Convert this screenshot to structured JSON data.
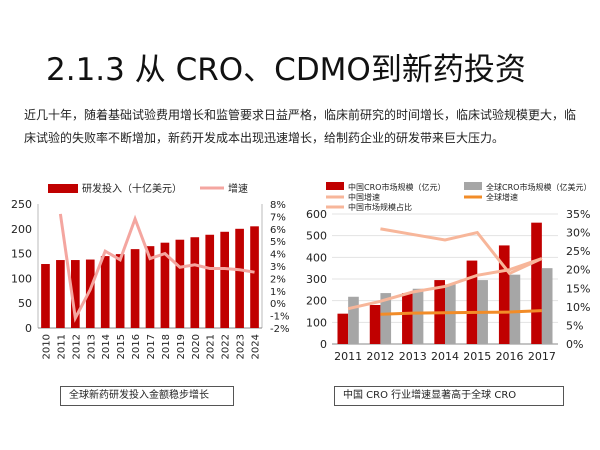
{
  "slide": {
    "title": "2.1.3 从 CRO、CDMO到新药投资",
    "intro": "近几十年，随着基础试验费用增长和监管要求日益严格，临床前研究的时间增长，临床试验规模更大，临床试验的失败率不断增加，新药开发成本出现迅速增长，给制药企业的研发带来巨大压力。"
  },
  "captions": {
    "left": "全球新药研发投入金额稳步增长",
    "right": "中国 CRO 行业增速显著高于全球 CRO"
  },
  "colors": {
    "dark_red": "#c00000",
    "pink": "#f4a6a0",
    "gray": "#a6a6a6",
    "orange": "#f28c28",
    "salmon": "#f7b69a"
  },
  "chart_data": [
    {
      "type": "bar",
      "categories": [
        "2010",
        "2011",
        "2012",
        "2013",
        "2014",
        "2015",
        "2016",
        "2017",
        "2018",
        "2019",
        "2020",
        "2021",
        "2022",
        "2023",
        "2024"
      ],
      "series": [
        {
          "name": "研发投入（十亿美元）",
          "type": "bar",
          "axis": "left",
          "color": "#c00000",
          "values": [
            129,
            137,
            137,
            138,
            145,
            149,
            159,
            165,
            172,
            178,
            183,
            188,
            194,
            200,
            205
          ]
        },
        {
          "name": "增速",
          "type": "line",
          "axis": "right",
          "color": "#f4a6a0",
          "values": [
            null,
            7.2,
            -1.2,
            1.1,
            4.2,
            3.5,
            6.8,
            3.6,
            4.0,
            2.9,
            3.1,
            2.8,
            2.8,
            2.7,
            2.5
          ]
        }
      ],
      "y_left": {
        "min": 0,
        "max": 250,
        "ticks": [
          0,
          50,
          100,
          150,
          200,
          250
        ]
      },
      "y_right": {
        "min": -2,
        "max": 8,
        "ticks": [
          "-2%",
          "-1%",
          "0%",
          "1%",
          "2%",
          "3%",
          "4%",
          "5%",
          "6%",
          "7%",
          "8%"
        ]
      },
      "legend": [
        "研发投入（十亿美元）",
        "增速"
      ],
      "legend_position": "top"
    },
    {
      "type": "bar",
      "categories": [
        "2011",
        "2012",
        "2013",
        "2014",
        "2015",
        "2016",
        "2017"
      ],
      "series": [
        {
          "name": "中国CRO市场规模（亿元）",
          "type": "bar",
          "axis": "left",
          "color": "#c00000",
          "values": [
            140,
            180,
            235,
            295,
            385,
            455,
            560
          ]
        },
        {
          "name": "全球CRO市场规模（亿美元）",
          "type": "bar",
          "axis": "left",
          "color": "#a6a6a6",
          "values": [
            218,
            235,
            255,
            275,
            295,
            320,
            350
          ]
        },
        {
          "name": "中国增速",
          "type": "line",
          "axis": "right",
          "color": "#f7b69a",
          "values": [
            null,
            31,
            29.5,
            28,
            30,
            19,
            23
          ]
        },
        {
          "name": "全球增速",
          "type": "line",
          "axis": "right",
          "color": "#f28c28",
          "values": [
            null,
            8,
            8.3,
            8.4,
            8.5,
            8.6,
            9
          ]
        },
        {
          "name": "中国市场规模占比",
          "type": "line",
          "axis": "right",
          "color": "#f7b69a",
          "values": [
            9.5,
            11.5,
            14,
            15.5,
            18.5,
            20,
            23
          ]
        }
      ],
      "y_left": {
        "min": 0,
        "max": 600,
        "ticks": [
          0,
          100,
          200,
          300,
          400,
          500,
          600
        ]
      },
      "y_right": {
        "min": 0,
        "max": 35,
        "ticks": [
          "0%",
          "5%",
          "10%",
          "15%",
          "20%",
          "25%",
          "30%",
          "35%"
        ]
      },
      "legend": [
        "中国CRO市场规模（亿元）",
        "全球CRO市场规模（亿美元）",
        "中国增速",
        "全球增速",
        "中国市场规模占比"
      ],
      "legend_position": "top"
    }
  ]
}
